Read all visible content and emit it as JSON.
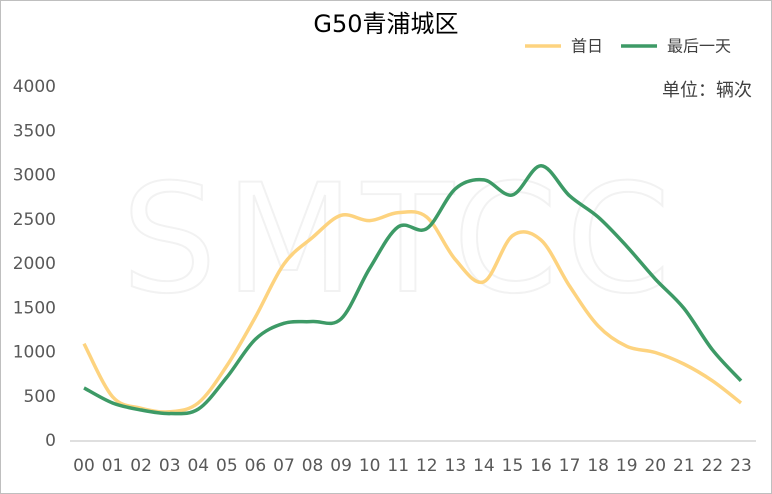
{
  "chart_data": {
    "type": "line",
    "title": "G50青浦城区",
    "unit_label": "单位：辆次",
    "watermark": "SMTCC",
    "categories": [
      "00",
      "01",
      "02",
      "03",
      "04",
      "05",
      "06",
      "07",
      "08",
      "09",
      "10",
      "11",
      "12",
      "13",
      "14",
      "15",
      "16",
      "17",
      "18",
      "19",
      "20",
      "21",
      "22",
      "23"
    ],
    "series": [
      {
        "name": "首日",
        "color": "#fdd37f",
        "values": [
          1100,
          500,
          370,
          330,
          430,
          850,
          1400,
          2000,
          2300,
          2550,
          2490,
          2580,
          2530,
          2050,
          1800,
          2320,
          2270,
          1750,
          1300,
          1070,
          1000,
          870,
          680,
          430
        ]
      },
      {
        "name": "最后一天",
        "color": "#3d9a66",
        "values": [
          600,
          430,
          350,
          310,
          360,
          720,
          1150,
          1330,
          1350,
          1380,
          1950,
          2420,
          2400,
          2850,
          2950,
          2780,
          3110,
          2770,
          2530,
          2200,
          1830,
          1500,
          1030,
          680
        ]
      }
    ],
    "ylim": [
      0,
      4000
    ],
    "yticks": [
      0,
      500,
      1000,
      1500,
      2000,
      2500,
      3000,
      3500,
      4000
    ],
    "grid": false,
    "legend": "top-right"
  }
}
